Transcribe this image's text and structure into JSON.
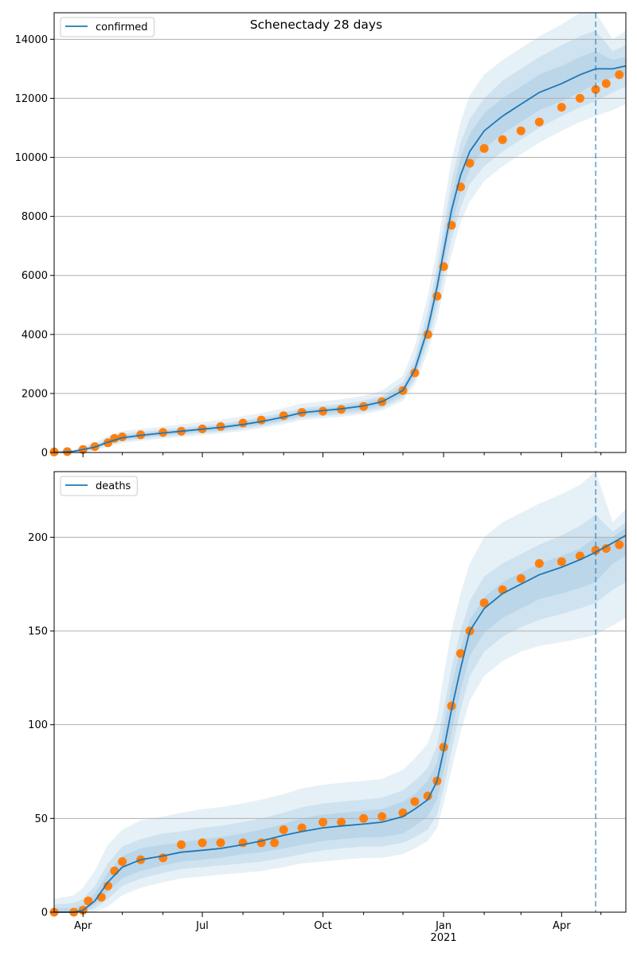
{
  "figure": {
    "title": "Schenectady 28 days"
  },
  "colors": {
    "model": "#1f77b4",
    "observed": "#ff7f0e",
    "band": "#1f77b4",
    "grid": "#b0b0b0",
    "vline": "#1f77b4"
  },
  "chart_data": [
    {
      "type": "line",
      "panel": "confirmed",
      "title": "Schenectady 28 days",
      "legend": [
        "confirmed"
      ],
      "legend_position": "upper-left",
      "x_axis": {
        "min": "2020-03-10",
        "max": "2021-05-20",
        "ticks": [
          "2020-04-01",
          "2020-07-01",
          "2020-10-01",
          "2021-01-01",
          "2021-04-01"
        ],
        "tick_labels": [
          "",
          "",
          "",
          "",
          ""
        ]
      },
      "ylim": [
        0,
        14900
      ],
      "yticks": [
        0,
        2000,
        4000,
        6000,
        8000,
        10000,
        12000,
        14000
      ],
      "grid_y": true,
      "forecast_start": "2021-04-27",
      "model_series": {
        "name": "confirmed",
        "x": [
          "2020-03-10",
          "2020-03-25",
          "2020-04-01",
          "2020-04-10",
          "2020-04-20",
          "2020-05-01",
          "2020-05-15",
          "2020-06-01",
          "2020-06-15",
          "2020-07-01",
          "2020-07-15",
          "2020-08-01",
          "2020-08-15",
          "2020-09-01",
          "2020-09-15",
          "2020-10-01",
          "2020-10-15",
          "2020-11-01",
          "2020-11-15",
          "2020-12-01",
          "2020-12-10",
          "2020-12-20",
          "2020-12-27",
          "2021-01-01",
          "2021-01-07",
          "2021-01-14",
          "2021-01-21",
          "2021-02-01",
          "2021-02-15",
          "2021-03-01",
          "2021-03-15",
          "2021-04-01",
          "2021-04-15",
          "2021-04-27",
          "2021-05-10",
          "2021-05-20"
        ],
        "y": [
          0,
          40,
          100,
          180,
          350,
          500,
          580,
          660,
          720,
          790,
          850,
          950,
          1050,
          1200,
          1350,
          1420,
          1480,
          1580,
          1720,
          2100,
          2800,
          4200,
          5600,
          6800,
          8200,
          9400,
          10200,
          10900,
          11400,
          11800,
          12200,
          12500,
          12800,
          13000,
          13000,
          13100
        ]
      },
      "observed_series": {
        "x": [
          "2020-03-10",
          "2020-03-20",
          "2020-04-01",
          "2020-04-10",
          "2020-04-20",
          "2020-04-25",
          "2020-05-01",
          "2020-05-15",
          "2020-06-01",
          "2020-06-15",
          "2020-07-01",
          "2020-07-15",
          "2020-08-01",
          "2020-08-15",
          "2020-09-01",
          "2020-09-15",
          "2020-10-01",
          "2020-10-15",
          "2020-11-01",
          "2020-11-15",
          "2020-12-01",
          "2020-12-10",
          "2020-12-20",
          "2020-12-27",
          "2021-01-01",
          "2021-01-07",
          "2021-01-14",
          "2021-01-21",
          "2021-02-01",
          "2021-02-15",
          "2021-03-01",
          "2021-03-15",
          "2021-04-01",
          "2021-04-15",
          "2021-04-27",
          "2021-05-05",
          "2021-05-15"
        ],
        "y": [
          20,
          30,
          100,
          200,
          330,
          480,
          530,
          600,
          680,
          720,
          800,
          880,
          1000,
          1100,
          1250,
          1360,
          1400,
          1460,
          1560,
          1720,
          2100,
          2700,
          4000,
          5300,
          6300,
          7700,
          9000,
          9800,
          10300,
          10600,
          10900,
          11200,
          11700,
          12000,
          12300,
          12500,
          12800
        ]
      },
      "bands": [
        {
          "level": "outer",
          "lower": [
            0,
            0,
            0,
            60,
            200,
            320,
            400,
            470,
            530,
            590,
            650,
            730,
            830,
            960,
            1100,
            1160,
            1210,
            1300,
            1420,
            1750,
            2300,
            3400,
            4500,
            5500,
            6700,
            7800,
            8500,
            9200,
            9700,
            10100,
            10500,
            10900,
            11200,
            11400,
            11600,
            11800
          ],
          "upper": [
            0,
            90,
            220,
            340,
            560,
            720,
            800,
            880,
            950,
            1030,
            1110,
            1230,
            1340,
            1500,
            1660,
            1730,
            1800,
            1920,
            2100,
            2600,
            3600,
            5300,
            6900,
            8300,
            9900,
            11200,
            12100,
            12800,
            13300,
            13700,
            14100,
            14500,
            14900,
            14900,
            14000,
            14300
          ]
        },
        {
          "level": "middle",
          "lower": [
            0,
            10,
            40,
            110,
            260,
            390,
            460,
            540,
            590,
            660,
            710,
            800,
            900,
            1040,
            1180,
            1240,
            1290,
            1380,
            1510,
            1860,
            2450,
            3700,
            4900,
            6000,
            7200,
            8300,
            9100,
            9700,
            10200,
            10600,
            11000,
            11400,
            11700,
            11900,
            12200,
            12400
          ],
          "upper": [
            0,
            70,
            170,
            270,
            450,
            630,
            700,
            780,
            840,
            910,
            980,
            1090,
            1200,
            1350,
            1510,
            1580,
            1650,
            1760,
            1920,
            2380,
            3200,
            4800,
            6300,
            7600,
            9200,
            10500,
            11300,
            12000,
            12600,
            13000,
            13400,
            13800,
            14100,
            14300,
            13600,
            13800
          ]
        },
        {
          "level": "inner",
          "lower": [
            0,
            20,
            60,
            140,
            300,
            440,
            510,
            590,
            640,
            710,
            760,
            860,
            960,
            1100,
            1250,
            1310,
            1370,
            1460,
            1600,
            1960,
            2600,
            3950,
            5250,
            6400,
            7700,
            8800,
            9600,
            10300,
            10800,
            11200,
            11600,
            11900,
            12200,
            12500,
            12700,
            12800
          ],
          "upper": [
            0,
            60,
            140,
            220,
            400,
            560,
            640,
            720,
            780,
            850,
            920,
            1030,
            1130,
            1280,
            1440,
            1510,
            1570,
            1680,
            1830,
            2250,
            3000,
            4500,
            5950,
            7200,
            8700,
            10000,
            10800,
            11500,
            12000,
            12400,
            12800,
            13100,
            13400,
            13600,
            13300,
            13400
          ]
        }
      ]
    },
    {
      "type": "line",
      "panel": "deaths",
      "legend": [
        "deaths"
      ],
      "legend_position": "upper-left",
      "x_axis": {
        "min": "2020-03-10",
        "max": "2021-05-20",
        "ticks": [
          "2020-04-01",
          "2020-07-01",
          "2020-10-01",
          "2021-01-01",
          "2021-04-01"
        ],
        "tick_labels": [
          "Apr",
          "Jul",
          "Oct",
          "Jan\n2021",
          "Apr"
        ]
      },
      "ylim": [
        0,
        235
      ],
      "yticks": [
        0,
        50,
        100,
        150,
        200
      ],
      "grid_y": true,
      "forecast_start": "2021-04-27",
      "model_series": {
        "name": "deaths",
        "x": [
          "2020-03-10",
          "2020-03-25",
          "2020-04-01",
          "2020-04-10",
          "2020-04-20",
          "2020-05-01",
          "2020-05-15",
          "2020-06-01",
          "2020-06-15",
          "2020-07-01",
          "2020-07-15",
          "2020-08-01",
          "2020-08-15",
          "2020-09-01",
          "2020-09-15",
          "2020-10-01",
          "2020-10-15",
          "2020-11-01",
          "2020-11-15",
          "2020-12-01",
          "2020-12-10",
          "2020-12-20",
          "2020-12-27",
          "2021-01-01",
          "2021-01-07",
          "2021-01-14",
          "2021-01-21",
          "2021-02-01",
          "2021-02-15",
          "2021-03-01",
          "2021-03-15",
          "2021-04-01",
          "2021-04-15",
          "2021-04-27",
          "2021-05-10",
          "2021-05-20"
        ],
        "y": [
          0,
          0,
          1,
          6,
          16,
          24,
          28,
          30,
          32,
          33,
          34,
          36,
          38,
          41,
          43,
          45,
          46,
          47,
          48,
          51,
          55,
          60,
          70,
          86,
          108,
          130,
          150,
          162,
          170,
          175,
          180,
          184,
          188,
          192,
          197,
          201
        ]
      },
      "observed_series": {
        "x": [
          "2020-03-10",
          "2020-03-25",
          "2020-04-01",
          "2020-04-05",
          "2020-04-15",
          "2020-04-20",
          "2020-04-25",
          "2020-05-01",
          "2020-05-15",
          "2020-06-01",
          "2020-06-15",
          "2020-07-01",
          "2020-07-15",
          "2020-08-01",
          "2020-08-15",
          "2020-08-25",
          "2020-09-01",
          "2020-09-15",
          "2020-10-01",
          "2020-10-15",
          "2020-11-01",
          "2020-11-15",
          "2020-12-01",
          "2020-12-10",
          "2020-12-20",
          "2020-12-27",
          "2021-01-01",
          "2021-01-07",
          "2021-01-14",
          "2021-01-21",
          "2021-02-01",
          "2021-02-15",
          "2021-03-01",
          "2021-03-15",
          "2021-04-01",
          "2021-04-15",
          "2021-04-27",
          "2021-05-05",
          "2021-05-15"
        ],
        "y": [
          0,
          0,
          1,
          6,
          8,
          14,
          22,
          27,
          28,
          29,
          36,
          37,
          37,
          37,
          37,
          37,
          44,
          45,
          48,
          48,
          50,
          51,
          53,
          59,
          62,
          70,
          88,
          110,
          138,
          150,
          165,
          172,
          178,
          186,
          187,
          190,
          193,
          194,
          196
        ]
      },
      "bands": [
        {
          "level": "outer",
          "lower": [
            0,
            0,
            0,
            0,
            3,
            9,
            13,
            16,
            18,
            19,
            20,
            21,
            22,
            24,
            26,
            27,
            28,
            29,
            29,
            31,
            34,
            38,
            45,
            58,
            76,
            96,
            113,
            126,
            134,
            139,
            142,
            144,
            146,
            148,
            153,
            157
          ],
          "upper": [
            7,
            9,
            13,
            22,
            36,
            44,
            49,
            51,
            53,
            55,
            56,
            58,
            60,
            63,
            66,
            68,
            69,
            70,
            71,
            76,
            82,
            90,
            104,
            126,
            150,
            170,
            186,
            200,
            208,
            213,
            218,
            223,
            228,
            235,
            208,
            215
          ]
        },
        {
          "level": "middle",
          "lower": [
            0,
            0,
            0,
            2,
            7,
            14,
            18,
            21,
            23,
            24,
            25,
            26,
            27,
            29,
            31,
            33,
            34,
            35,
            35,
            37,
            40,
            44,
            52,
            66,
            86,
            108,
            126,
            139,
            147,
            152,
            156,
            159,
            162,
            165,
            172,
            176
          ],
          "upper": [
            4,
            5,
            7,
            14,
            26,
            35,
            39,
            42,
            43,
            45,
            46,
            48,
            50,
            53,
            56,
            58,
            59,
            60,
            61,
            65,
            70,
            77,
            89,
            108,
            130,
            150,
            166,
            179,
            186,
            191,
            196,
            201,
            206,
            212,
            203,
            208
          ]
        },
        {
          "level": "inner",
          "lower": [
            0,
            0,
            0,
            4,
            11,
            18,
            22,
            25,
            27,
            28,
            29,
            31,
            32,
            34,
            36,
            38,
            39,
            40,
            40,
            42,
            46,
            51,
            60,
            75,
            96,
            118,
            137,
            149,
            157,
            162,
            167,
            170,
            173,
            176,
            186,
            190
          ],
          "upper": [
            2,
            2,
            4,
            10,
            21,
            30,
            34,
            36,
            37,
            39,
            40,
            42,
            44,
            47,
            50,
            52,
            53,
            54,
            55,
            59,
            63,
            70,
            80,
            98,
            120,
            141,
            156,
            168,
            176,
            181,
            186,
            190,
            194,
            200,
            200,
            205
          ]
        }
      ]
    }
  ]
}
